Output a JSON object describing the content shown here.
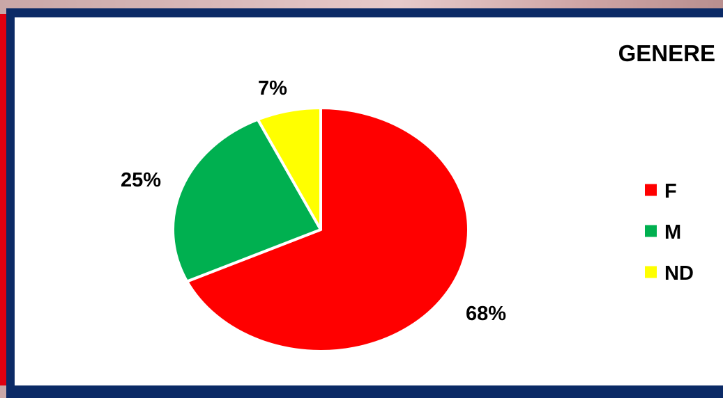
{
  "chart_data": {
    "type": "pie",
    "title": "GENERE",
    "categories": [
      "F",
      "M",
      "ND"
    ],
    "values": [
      68,
      25,
      7
    ],
    "data_labels": [
      "68%",
      "25%",
      "7%"
    ],
    "colors": [
      "#ff0000",
      "#00b050",
      "#ffff00"
    ],
    "legend": {
      "placement": "right",
      "entries": [
        "F",
        "M",
        "ND"
      ]
    },
    "start_angle_deg": 0,
    "direction": "clockwise"
  }
}
